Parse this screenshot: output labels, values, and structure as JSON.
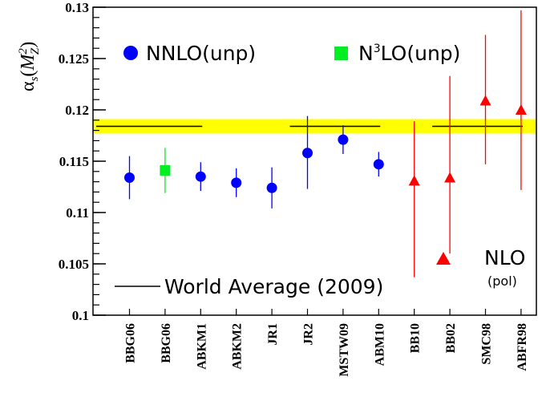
{
  "chart_data": {
    "type": "scatter",
    "ylabel": {
      "symbol": "α",
      "sub": "s",
      "open": "(",
      "var": "M",
      "var_sup": "2",
      "var_sub": "Z",
      "close": ")"
    },
    "ylim": [
      0.1,
      0.13
    ],
    "yticks": [
      "0.1",
      "0.105",
      "0.11",
      "0.115",
      "0.12",
      "0.125",
      "0.13"
    ],
    "categories": [
      "BBG06",
      "BBG06",
      "ABKM1",
      "ABKM2",
      "JR1",
      "JR2",
      "MSTW09",
      "ABM10",
      "BB10",
      "BB02",
      "SMC98",
      "ABFR98"
    ],
    "world_average": {
      "value": 0.1184,
      "band": [
        0.1177,
        0.1191
      ],
      "band_color": "#ffff00",
      "line_segments": [
        [
          0,
          2
        ],
        [
          5,
          7
        ],
        [
          9,
          11
        ]
      ],
      "label": "World Average (2009)"
    },
    "series": [
      {
        "name": "NNLO(unp)",
        "marker": "circle",
        "color": "#0000ff",
        "points": [
          {
            "cat": 0,
            "y": 0.1134,
            "lo": 0.1113,
            "hi": 0.1155
          },
          {
            "cat": 2,
            "y": 0.1135,
            "lo": 0.1121,
            "hi": 0.1149
          },
          {
            "cat": 3,
            "y": 0.1129,
            "lo": 0.1115,
            "hi": 0.1143
          },
          {
            "cat": 4,
            "y": 0.1124,
            "lo": 0.1104,
            "hi": 0.1144
          },
          {
            "cat": 5,
            "y": 0.1158,
            "lo": 0.1123,
            "hi": 0.1194
          },
          {
            "cat": 6,
            "y": 0.1171,
            "lo": 0.1157,
            "hi": 0.1185
          },
          {
            "cat": 7,
            "y": 0.1147,
            "lo": 0.1135,
            "hi": 0.1159
          }
        ]
      },
      {
        "name_prefix": "N",
        "name_sup": "3",
        "name_suffix": "LO(unp)",
        "marker": "square",
        "color": "#00ee22",
        "points": [
          {
            "cat": 1,
            "y": 0.1141,
            "lo": 0.1119,
            "hi": 0.1163
          }
        ]
      },
      {
        "name": "NLO",
        "name_note": "(pol)",
        "marker": "triangle",
        "color": "#ff0000",
        "points": [
          {
            "cat": 8,
            "y": 0.1131,
            "lo": 0.1037,
            "hi": 0.1189
          },
          {
            "cat": 9,
            "y": 0.1134,
            "lo": 0.106,
            "hi": 0.1233
          },
          {
            "cat": 10,
            "y": 0.1209,
            "lo": 0.1147,
            "hi": 0.1273
          },
          {
            "cat": 11,
            "y": 0.12,
            "lo": 0.1122,
            "hi": 0.1297
          }
        ]
      }
    ]
  }
}
